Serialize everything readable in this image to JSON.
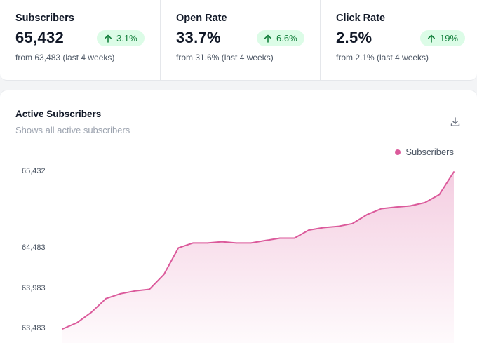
{
  "stats": [
    {
      "label": "Subscribers",
      "value": "65,432",
      "change": "3.1%",
      "subtext": "from 63,483 (last 4 weeks)"
    },
    {
      "label": "Open Rate",
      "value": "33.7%",
      "change": "6.6%",
      "subtext": "from 31.6% (last 4 weeks)"
    },
    {
      "label": "Click Rate",
      "value": "2.5%",
      "change": "19%",
      "subtext": "from 2.1% (last 4 weeks)"
    }
  ],
  "chart": {
    "title": "Active Subscribers",
    "subtitle": "Shows all active subscribers",
    "download_icon": "download-icon"
  },
  "colors": {
    "accent": "#db5a9b",
    "positive_bg": "#dcfce7",
    "positive_text": "#15803d"
  },
  "chart_data": {
    "type": "area",
    "series": [
      {
        "name": "Subscribers",
        "values": [
          63483,
          63560,
          63690,
          63860,
          63920,
          63955,
          63975,
          64160,
          64490,
          64550,
          64550,
          64565,
          64550,
          64550,
          64580,
          64610,
          64610,
          64710,
          64740,
          64755,
          64790,
          64900,
          64975,
          64995,
          65010,
          65050,
          65150,
          65432
        ]
      }
    ],
    "y_ticks": [
      "65,432",
      "64,483",
      "63,983",
      "63,483"
    ],
    "y_tick_values": [
      65432,
      64483,
      63983,
      63483
    ],
    "ylim": [
      63483,
      65432
    ],
    "grid": false,
    "legend_position": "top-right"
  }
}
